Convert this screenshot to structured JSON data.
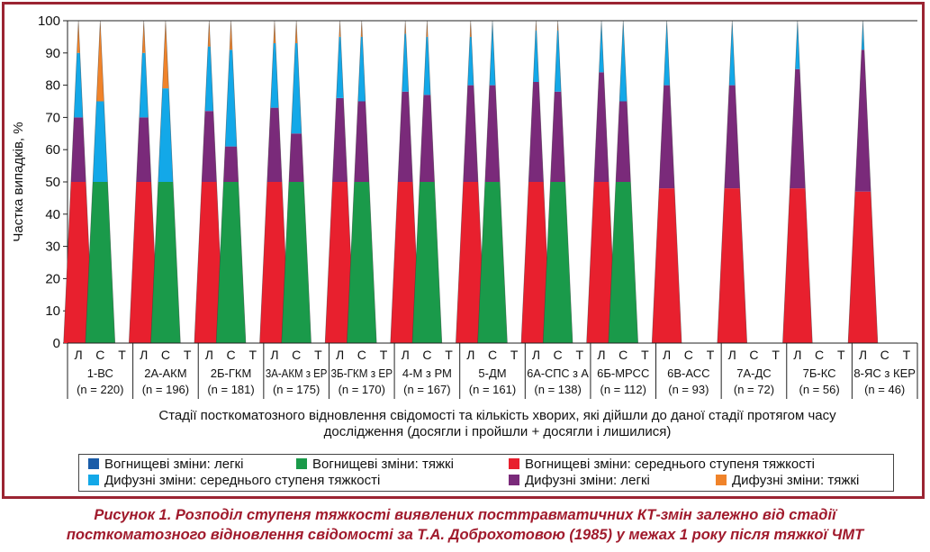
{
  "chart_data": {
    "type": "area",
    "ylabel": "Частка випадків, %",
    "xlabel_lines": [
      "Стадії посткоматозного відновлення свідомості та кількість хворих, які дійшли до даної стадії протягом часу",
      "дослідження (досягли і пройшли + досягли і лишилися)"
    ],
    "ylim": [
      0,
      100
    ],
    "y_ticks": [
      "0",
      "10",
      "20",
      "30",
      "40",
      "50",
      "60",
      "70",
      "80",
      "90",
      "100"
    ],
    "sub_labels": [
      "Л",
      "С",
      "Т"
    ],
    "series_order_bottom_to_top": [
      "focal_light",
      "focal_medium",
      "focal_severe",
      "diffuse_light",
      "diffuse_medium",
      "diffuse_severe"
    ],
    "legend": [
      {
        "key": "focal_light",
        "label": "Вогнищеві зміни: легкі",
        "color": "#1a5ca8"
      },
      {
        "key": "focal_severe",
        "label": "Вогнищеві зміни: тяжкі",
        "color": "#1a9a4a"
      },
      {
        "key": "focal_medium",
        "label": "Вогнищеві зміни: середнього ступеня тяжкості",
        "color": "#e8202e"
      },
      {
        "key": "diffuse_medium",
        "label": "Дифузні зміни: середнього ступеня тяжкості",
        "color": "#13a8e8"
      },
      {
        "key": "diffuse_light",
        "label": "Дифузні зміни: легкі",
        "color": "#7a2a7a"
      },
      {
        "key": "diffuse_severe",
        "label": "Дифузні зміни: тяжкі",
        "color": "#f0832a"
      }
    ],
    "groups": [
      {
        "name": "1-ВС",
        "n": "(n = 220)",
        "L": [
          0,
          50,
          0,
          20,
          20,
          10
        ],
        "S": [
          0,
          0,
          50,
          0,
          25,
          25
        ],
        "T": [
          0,
          0,
          0,
          0,
          0,
          0
        ]
      },
      {
        "name": "2А-АКМ",
        "n": "(n = 196)",
        "L": [
          0,
          50,
          0,
          20,
          20,
          10
        ],
        "S": [
          0,
          0,
          50,
          0,
          29,
          21
        ],
        "T": [
          0,
          0,
          0,
          0,
          0,
          0
        ]
      },
      {
        "name": "2Б-ГКМ",
        "n": "(n = 181)",
        "L": [
          0,
          50,
          0,
          22,
          20,
          8
        ],
        "S": [
          0,
          0,
          50,
          11,
          30,
          9
        ],
        "T": [
          0,
          0,
          0,
          0,
          0,
          0
        ]
      },
      {
        "name": "3А-АКМ з ЕР",
        "n": "(n = 175)",
        "L": [
          0,
          50,
          0,
          23,
          20,
          7
        ],
        "S": [
          0,
          0,
          50,
          15,
          28,
          7
        ],
        "T": [
          0,
          0,
          0,
          0,
          0,
          0
        ]
      },
      {
        "name": "3Б-ГКМ з ЕР",
        "n": "(n = 170)",
        "L": [
          0,
          50,
          0,
          26,
          19,
          5
        ],
        "S": [
          0,
          0,
          50,
          25,
          20,
          5
        ],
        "T": [
          0,
          0,
          0,
          0,
          0,
          0
        ]
      },
      {
        "name": "4-М з РМ",
        "n": "(n = 167)",
        "L": [
          0,
          50,
          0,
          28,
          18,
          4
        ],
        "S": [
          0,
          0,
          50,
          27,
          18,
          5
        ],
        "T": [
          0,
          0,
          0,
          0,
          0,
          0
        ]
      },
      {
        "name": "5-ДМ",
        "n": "(n = 161)",
        "L": [
          0,
          50,
          0,
          30,
          15,
          5
        ],
        "S": [
          0,
          0,
          50,
          30,
          20,
          0
        ],
        "T": [
          0,
          0,
          0,
          0,
          0,
          0
        ]
      },
      {
        "name": "6А-СПС з А",
        "n": "(n = 138)",
        "L": [
          0,
          50,
          0,
          31,
          16,
          3
        ],
        "S": [
          0,
          0,
          50,
          28,
          19,
          3
        ],
        "T": [
          0,
          0,
          0,
          0,
          0,
          0
        ]
      },
      {
        "name": "6Б-МРСС",
        "n": "(n = 112)",
        "L": [
          0,
          50,
          0,
          34,
          16,
          0
        ],
        "S": [
          0,
          0,
          50,
          25,
          25,
          0
        ],
        "T": [
          0,
          0,
          0,
          0,
          0,
          0
        ]
      },
      {
        "name": "6В-АСС",
        "n": "(n = 93)",
        "L": [
          0,
          48,
          0,
          32,
          20,
          0
        ],
        "S": [
          0,
          0,
          0,
          0,
          0,
          0
        ],
        "T": [
          0,
          0,
          0,
          0,
          0,
          0
        ]
      },
      {
        "name": "7А-ДС",
        "n": "(n = 72)",
        "L": [
          0,
          48,
          0,
          32,
          20,
          0
        ],
        "S": [
          0,
          0,
          0,
          0,
          0,
          0
        ],
        "T": [
          0,
          0,
          0,
          0,
          0,
          0
        ]
      },
      {
        "name": "7Б-КС",
        "n": "(n = 56)",
        "L": [
          0,
          48,
          0,
          37,
          15,
          0
        ],
        "S": [
          0,
          0,
          0,
          0,
          0,
          0
        ],
        "T": [
          0,
          0,
          0,
          0,
          0,
          0
        ]
      },
      {
        "name": "8-ЯС з КЕР",
        "n": "(n = 46)",
        "L": [
          0,
          47,
          0,
          44,
          9,
          0
        ],
        "S": [
          0,
          0,
          0,
          0,
          0,
          0
        ],
        "T": [
          0,
          0,
          0,
          0,
          0,
          0
        ]
      }
    ]
  },
  "caption_lines": [
    "Рисунок 1.  Розподіл ступеня тяжкості виявлених посттравматичних КТ-змін залежно від стадії",
    "посткоматозного відновлення свідомості за Т.А. Доброхотовою (1985) у межах 1 року після тяжкої ЧМТ"
  ]
}
